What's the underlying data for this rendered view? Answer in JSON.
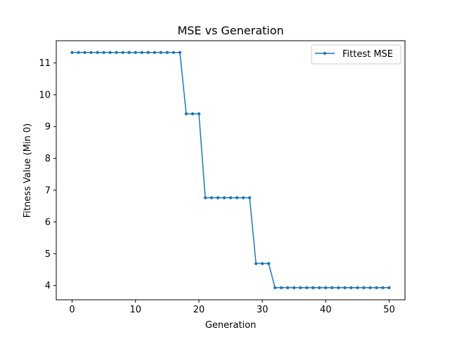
{
  "chart_data": {
    "type": "line",
    "title": "MSE vs Generation",
    "xlabel": "Generation",
    "ylabel": "Fitness Value (Min 0)",
    "xlim": [
      -2.5,
      52.5
    ],
    "ylim": [
      3.55,
      11.7
    ],
    "xticks": [
      0,
      10,
      20,
      30,
      40,
      50
    ],
    "yticks": [
      4,
      5,
      6,
      7,
      8,
      9,
      10,
      11
    ],
    "grid": false,
    "legend_position": "top-right",
    "series": [
      {
        "name": "Fittest MSE",
        "color": "#1f77b4",
        "marker": "dot",
        "x": [
          0,
          1,
          2,
          3,
          4,
          5,
          6,
          7,
          8,
          9,
          10,
          11,
          12,
          13,
          14,
          15,
          16,
          17,
          18,
          19,
          20,
          21,
          22,
          23,
          24,
          25,
          26,
          27,
          28,
          29,
          30,
          31,
          32,
          33,
          34,
          35,
          36,
          37,
          38,
          39,
          40,
          41,
          42,
          43,
          44,
          45,
          46,
          47,
          48,
          49,
          50
        ],
        "y": [
          11.33,
          11.33,
          11.33,
          11.33,
          11.33,
          11.33,
          11.33,
          11.33,
          11.33,
          11.33,
          11.33,
          11.33,
          11.33,
          11.33,
          11.33,
          11.33,
          11.33,
          11.33,
          9.4,
          9.4,
          9.4,
          6.76,
          6.76,
          6.76,
          6.76,
          6.76,
          6.76,
          6.76,
          6.76,
          4.69,
          4.69,
          4.69,
          3.93,
          3.93,
          3.93,
          3.93,
          3.93,
          3.93,
          3.93,
          3.93,
          3.93,
          3.93,
          3.93,
          3.93,
          3.93,
          3.93,
          3.93,
          3.93,
          3.93,
          3.93,
          3.93
        ]
      }
    ]
  }
}
